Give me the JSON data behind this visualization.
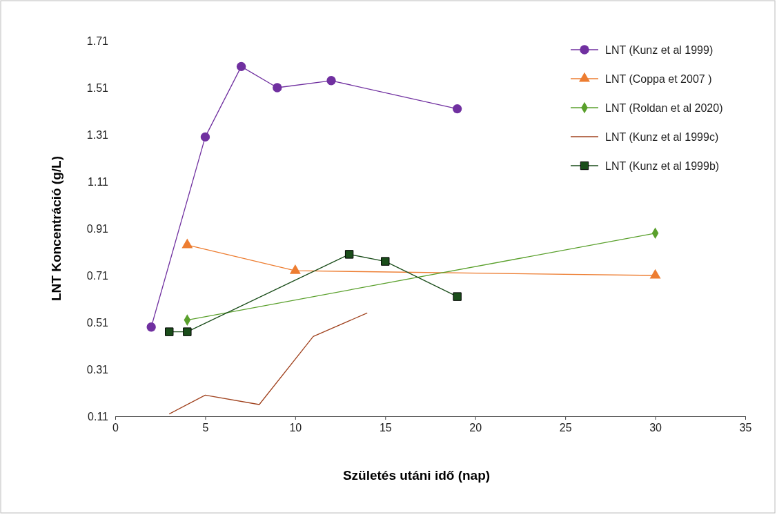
{
  "chart_data": {
    "type": "line",
    "xlabel": "Születés utáni idő (nap)",
    "ylabel": "LNT Koncentráció (g/L)",
    "xlim": [
      0,
      35
    ],
    "xticks": [
      0,
      5,
      10,
      15,
      20,
      25,
      30,
      35
    ],
    "ylim": [
      0.11,
      1.71
    ],
    "yticks": [
      0.11,
      0.31,
      0.51,
      0.71,
      0.91,
      1.11,
      1.31,
      1.51,
      1.71
    ],
    "grid": false,
    "legend": "top right",
    "line_style": "solid",
    "series": [
      {
        "name": "LNT (Kunz et al 1999)",
        "color": "#7030a0",
        "marker": "circle",
        "x": [
          2,
          5,
          7,
          9,
          12,
          19
        ],
        "values": [
          0.49,
          1.3,
          1.6,
          1.51,
          1.54,
          1.42
        ]
      },
      {
        "name": "LNT (Coppa et 2007 )",
        "color": "#ed7d31",
        "marker": "triangle",
        "x": [
          4,
          10,
          30
        ],
        "values": [
          0.84,
          0.73,
          0.71
        ]
      },
      {
        "name": "LNT (Roldan et al 2020)",
        "color": "#5aa02c",
        "marker": "diamond",
        "x": [
          4,
          30
        ],
        "values": [
          0.52,
          0.89
        ]
      },
      {
        "name": "LNT (Kunz et al 1999c)",
        "color": "#a0421e",
        "marker": "none",
        "x": [
          3,
          5,
          8,
          11,
          14
        ],
        "values": [
          0.12,
          0.2,
          0.16,
          0.45,
          0.55
        ]
      },
      {
        "name": "LNT (Kunz et al 1999b)",
        "color": "#1a4d1a",
        "marker": "square",
        "x": [
          3,
          4,
          13,
          15,
          19
        ],
        "values": [
          0.47,
          0.47,
          0.8,
          0.77,
          0.62
        ]
      }
    ]
  }
}
